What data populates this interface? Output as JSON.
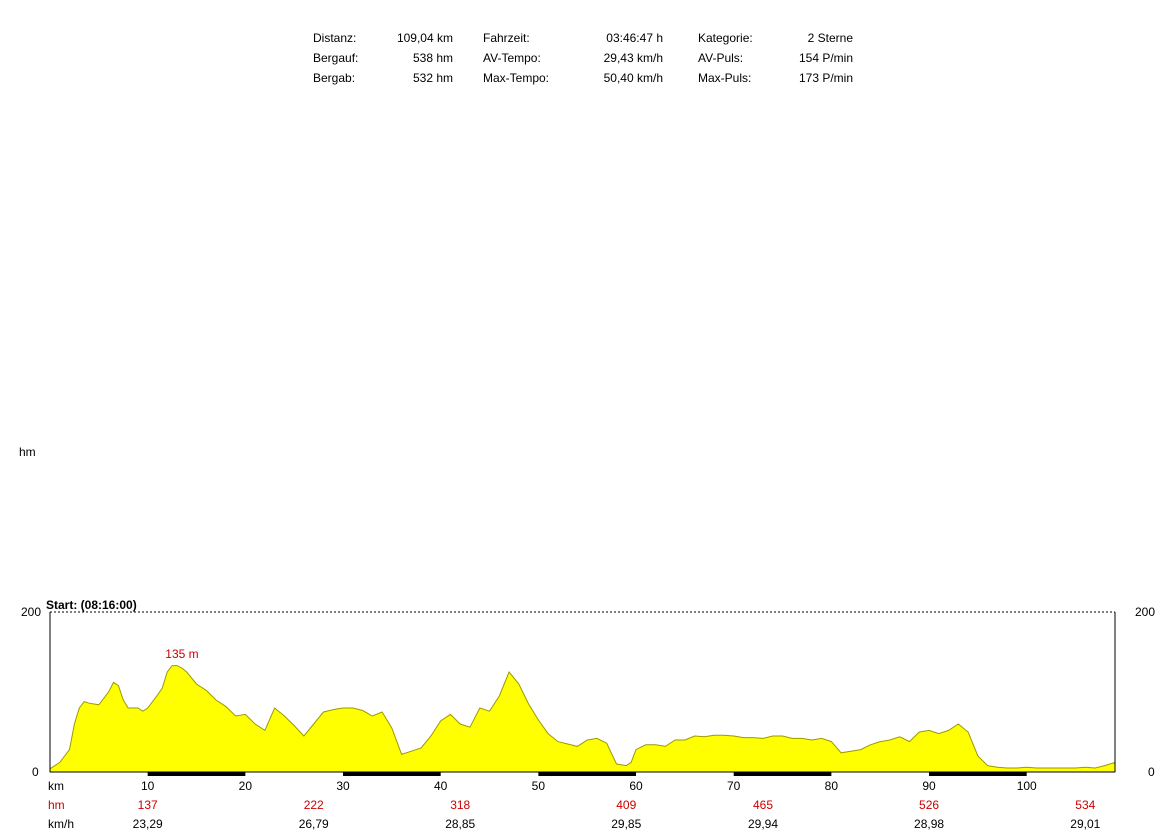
{
  "stats": [
    {
      "label": "Distanz:",
      "value": "109,04 km"
    },
    {
      "label": "Bergauf:",
      "value": "538 hm"
    },
    {
      "label": "Bergab:",
      "value": "532 hm"
    },
    {
      "label": "Fahrzeit:",
      "value": "03:46:47 h"
    },
    {
      "label": "AV-Tempo:",
      "value": "29,43 km/h"
    },
    {
      "label": "Max-Tempo:",
      "value": "50,40 km/h"
    },
    {
      "label": "Kategorie:",
      "value": "2 Sterne"
    },
    {
      "label": "AV-Puls:",
      "value": "154 P/min"
    },
    {
      "label": "Max-Puls:",
      "value": "173 P/min"
    }
  ],
  "ylabel": "hm",
  "start_label": "Start: (08:16:00)",
  "colors": {
    "fill": "#ffff00",
    "stroke": "#9a9a00",
    "accent": "#cc0000",
    "band": "#000000"
  },
  "chart_data": {
    "type": "area",
    "title": "",
    "xlabel": "km",
    "ylabel": "hm",
    "xlim": [
      0,
      109.04
    ],
    "ylim": [
      0,
      200
    ],
    "y_ticks": [
      "0",
      "200"
    ],
    "x_ticks": [
      "10",
      "20",
      "30",
      "40",
      "50",
      "60",
      "70",
      "80",
      "90",
      "100"
    ],
    "x_tick_values": [
      10,
      20,
      30,
      40,
      50,
      60,
      70,
      80,
      90,
      100
    ],
    "x": [
      0,
      1,
      2,
      2.5,
      3,
      3.5,
      4,
      5,
      6,
      6.5,
      7,
      7.5,
      8,
      9,
      9.5,
      10,
      11,
      11.5,
      12,
      12.5,
      13,
      13.5,
      14,
      15,
      16,
      17,
      18,
      19,
      20,
      21,
      22,
      23,
      24,
      25,
      26,
      27,
      28,
      29,
      30,
      31,
      32,
      33,
      34,
      35,
      36,
      37,
      38,
      39,
      40,
      41,
      42,
      43,
      44,
      45,
      46,
      47,
      48,
      49,
      50,
      51,
      52,
      53,
      54,
      55,
      56,
      57,
      58,
      59,
      59.5,
      60,
      61,
      62,
      63,
      64,
      65,
      66,
      67,
      68,
      69,
      70,
      71,
      72,
      73,
      74,
      75,
      76,
      77,
      78,
      79,
      80,
      81,
      82,
      83,
      84,
      85,
      86,
      87,
      88,
      89,
      90,
      91,
      92,
      93,
      94,
      95,
      96,
      97,
      98,
      99,
      100,
      101,
      102,
      103,
      104,
      105,
      106,
      107,
      108,
      109.04
    ],
    "y": [
      4,
      12,
      28,
      60,
      80,
      88,
      86,
      84,
      100,
      112,
      108,
      90,
      80,
      80,
      76,
      80,
      96,
      105,
      125,
      133,
      133,
      130,
      125,
      110,
      102,
      90,
      82,
      70,
      72,
      60,
      52,
      80,
      70,
      58,
      45,
      60,
      75,
      78,
      80,
      80,
      77,
      70,
      75,
      55,
      22,
      26,
      30,
      45,
      64,
      72,
      60,
      56,
      80,
      76,
      95,
      125,
      110,
      85,
      65,
      48,
      38,
      35,
      32,
      40,
      42,
      36,
      10,
      8,
      12,
      28,
      34,
      34,
      32,
      40,
      40,
      45,
      44,
      46,
      46,
      45,
      43,
      43,
      42,
      45,
      45,
      42,
      42,
      40,
      42,
      38,
      24,
      26,
      28,
      34,
      38,
      40,
      44,
      38,
      50,
      52,
      48,
      52,
      60,
      50,
      20,
      8,
      6,
      5,
      5,
      6,
      5,
      5,
      5,
      5,
      5,
      6,
      5,
      8,
      12
    ],
    "peak_label": "135 m",
    "peak_x": 13,
    "hm_row_label": "hm",
    "hm_row": [
      "137",
      "222",
      "318",
      "409",
      "465",
      "526",
      "534"
    ],
    "kmh_row_label": "km/h",
    "kmh_row": [
      "23,29",
      "26,79",
      "28,85",
      "29,85",
      "29,94",
      "28,98",
      "29,01"
    ],
    "row_x": [
      10,
      27,
      42,
      59,
      73,
      90,
      106
    ]
  }
}
